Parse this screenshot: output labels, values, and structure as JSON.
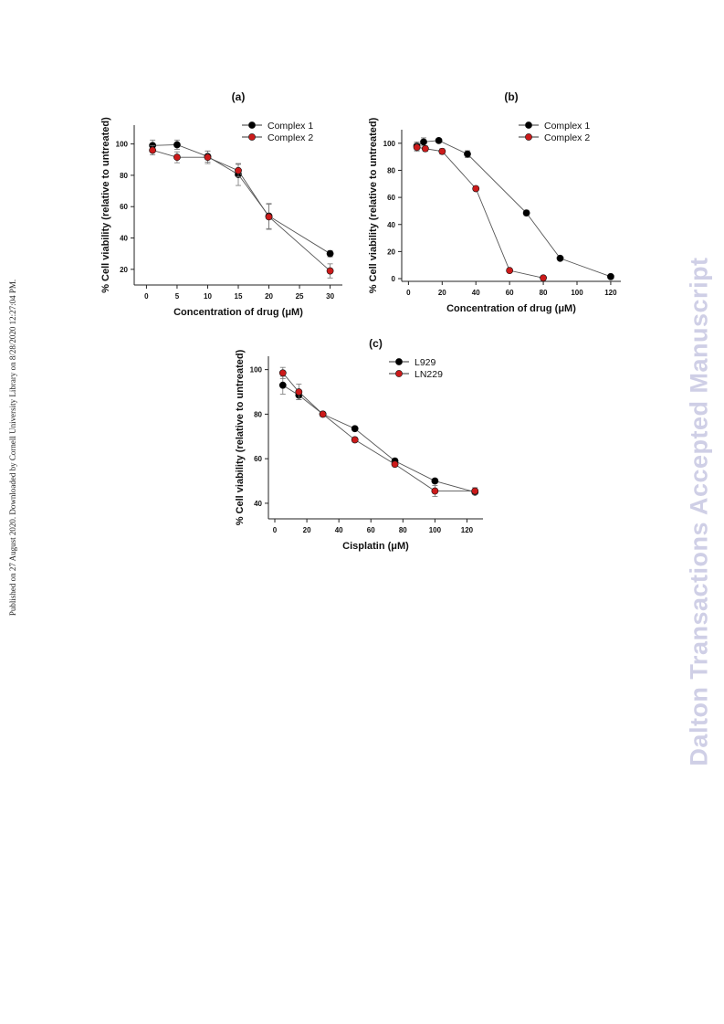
{
  "side_note": "Published on 27 August 2020. Downloaded by Cornell University Library on 8/28/2020 12:27:04 PM.",
  "watermark": "Dalton Transactions Accepted Manuscript",
  "colors": {
    "complex1": "#000000",
    "complex2": "#cc1a1a",
    "line": "#555555",
    "errbar": "#777777"
  },
  "chart_data": [
    {
      "type": "line",
      "title": "(a)",
      "xlabel": "Concentration of drug (μM)",
      "ylabel": "% Cell viability (relative to untreated)",
      "xlim": [
        -2,
        32
      ],
      "ylim": [
        10,
        112
      ],
      "xticks": [
        0,
        5,
        10,
        15,
        20,
        25,
        30
      ],
      "yticks": [
        20,
        40,
        60,
        80,
        100
      ],
      "legend": "top-right",
      "series": [
        {
          "name": "Complex 1",
          "color": "#000000",
          "x": [
            1,
            5,
            10,
            15,
            20,
            30
          ],
          "y": [
            99,
            99.5,
            92,
            80.5,
            54,
            30
          ],
          "err": [
            3.5,
            3,
            3.5,
            7,
            8,
            2
          ]
        },
        {
          "name": "Complex 2",
          "color": "#cc1a1a",
          "x": [
            1,
            5,
            10,
            15,
            20,
            30
          ],
          "y": [
            96,
            91.5,
            91.5,
            83,
            53.5,
            19
          ],
          "err": [
            3,
            3.5,
            4,
            4,
            8,
            4.5
          ]
        }
      ]
    },
    {
      "type": "line",
      "title": "(b)",
      "xlabel": "Concentration of drug (μM)",
      "ylabel": "% Cell viability (relative to untreated)",
      "xlim": [
        -4,
        126
      ],
      "ylim": [
        -2,
        110
      ],
      "xticks": [
        0,
        20,
        40,
        60,
        80,
        100,
        120
      ],
      "yticks": [
        0,
        20,
        40,
        60,
        80,
        100
      ],
      "legend": "top-right",
      "series": [
        {
          "name": "Complex 1",
          "color": "#000000",
          "x": [
            5,
            9,
            18,
            35,
            70,
            90,
            120
          ],
          "y": [
            98,
            101,
            102,
            92,
            48.5,
            15,
            1.5
          ],
          "err": [
            3,
            3,
            1.5,
            2.5,
            2,
            1,
            1
          ]
        },
        {
          "name": "Complex 2",
          "color": "#cc1a1a",
          "x": [
            5,
            10,
            20,
            40,
            60,
            80
          ],
          "y": [
            97,
            96,
            94,
            66.5,
            6,
            0.5
          ],
          "err": [
            3,
            2,
            2,
            1.5,
            1,
            0.5
          ]
        }
      ]
    },
    {
      "type": "line",
      "title": "(c)",
      "xlabel": "Cisplatin (μM)",
      "ylabel": "% Cell viability (relative to untreated)",
      "xlim": [
        -4,
        130
      ],
      "ylim": [
        33,
        106
      ],
      "xticks": [
        0,
        20,
        40,
        60,
        80,
        100,
        120
      ],
      "yticks": [
        40,
        60,
        80,
        100
      ],
      "legend": "top-right",
      "series": [
        {
          "name": "L929",
          "color": "#000000",
          "x": [
            5,
            15,
            30,
            50,
            75,
            100,
            125
          ],
          "y": [
            93,
            88.5,
            80,
            73.5,
            59,
            50,
            45
          ],
          "err": [
            4,
            2,
            1,
            1,
            1,
            1,
            1
          ]
        },
        {
          "name": "LN229",
          "color": "#cc1a1a",
          "x": [
            5,
            15,
            30,
            50,
            75,
            100,
            125
          ],
          "y": [
            98.5,
            90,
            80,
            68.5,
            57.5,
            45.5,
            45.5
          ],
          "err": [
            2.5,
            3.5,
            1,
            1,
            1,
            2.5,
            1.5
          ]
        }
      ]
    }
  ]
}
